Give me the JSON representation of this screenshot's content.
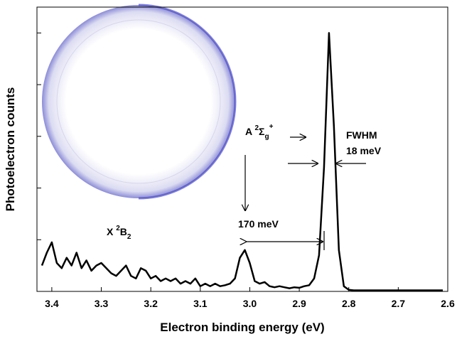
{
  "chart_data": {
    "type": "line",
    "x_label": "Electron binding energy (eV)",
    "y_label": "Photoelectron counts",
    "x": [
      3.42,
      3.41,
      3.4,
      3.39,
      3.38,
      3.37,
      3.36,
      3.35,
      3.34,
      3.33,
      3.32,
      3.31,
      3.3,
      3.29,
      3.28,
      3.27,
      3.26,
      3.25,
      3.24,
      3.23,
      3.22,
      3.21,
      3.2,
      3.19,
      3.18,
      3.17,
      3.16,
      3.15,
      3.14,
      3.13,
      3.12,
      3.11,
      3.1,
      3.09,
      3.08,
      3.07,
      3.06,
      3.05,
      3.04,
      3.03,
      3.02,
      3.01,
      3.0,
      2.99,
      2.98,
      2.97,
      2.96,
      2.95,
      2.94,
      2.93,
      2.92,
      2.91,
      2.9,
      2.89,
      2.88,
      2.87,
      2.86,
      2.85,
      2.84,
      2.83,
      2.82,
      2.81,
      2.8,
      2.79,
      2.77,
      2.75,
      2.73,
      2.71,
      2.69,
      2.67,
      2.65,
      2.63,
      2.61
    ],
    "values": [
      0.5,
      0.75,
      0.95,
      0.55,
      0.45,
      0.65,
      0.5,
      0.75,
      0.45,
      0.6,
      0.4,
      0.5,
      0.55,
      0.45,
      0.35,
      0.3,
      0.4,
      0.5,
      0.3,
      0.25,
      0.45,
      0.4,
      0.25,
      0.3,
      0.2,
      0.25,
      0.2,
      0.25,
      0.15,
      0.2,
      0.15,
      0.25,
      0.1,
      0.15,
      0.1,
      0.15,
      0.1,
      0.12,
      0.15,
      0.25,
      0.65,
      0.8,
      0.55,
      0.2,
      0.15,
      0.18,
      0.1,
      0.08,
      0.1,
      0.08,
      0.06,
      0.08,
      0.07,
      0.1,
      0.12,
      0.25,
      0.7,
      2.4,
      5.0,
      3.2,
      0.8,
      0.1,
      0.03,
      0.02,
      0.02,
      0.02,
      0.02,
      0.02,
      0.02,
      0.02,
      0.02,
      0.02,
      0.02
    ],
    "color": "#000000",
    "xlim": [
      3.43,
      2.6
    ],
    "xticks": [
      3.4,
      3.3,
      3.2,
      3.1,
      {
        "value": 3,
        "label": "3.0"
      },
      2.9,
      2.8,
      2.7,
      2.6
    ],
    "ylim": [
      0,
      5.5
    ],
    "yticks": [
      0,
      1,
      2,
      3,
      4,
      5
    ],
    "annotations": {
      "x_state": {
        "letter": "X",
        "sup": "2",
        "sym": "B",
        "sub": "2"
      },
      "a_state": {
        "letter": "A",
        "sup": "2",
        "sym": "Σ",
        "sub": "g",
        "sup2": "+"
      },
      "spacing": "170 meV",
      "fwhm": "FWHM",
      "fwhm_value": "18 meV"
    }
  }
}
